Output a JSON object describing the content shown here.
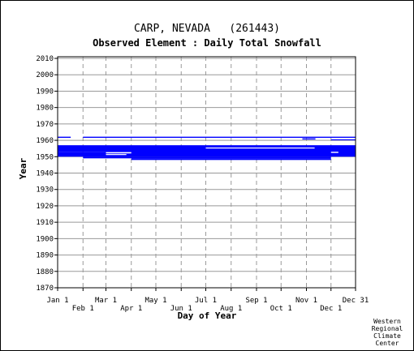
{
  "chart_data": {
    "type": "bar",
    "title": "CARP, NEVADA   (261443)",
    "subtitle": "Observed Element : Daily Total Snowfall",
    "xlabel": "Day of Year",
    "ylabel": "Year",
    "xlim": [
      1,
      365
    ],
    "ylim": [
      1870,
      2011
    ],
    "x_ticks_upper": [
      {
        "label": "Jan 1",
        "day": 1
      },
      {
        "label": "Mar 1",
        "day": 60
      },
      {
        "label": "May 1",
        "day": 121
      },
      {
        "label": "Jul 1",
        "day": 182
      },
      {
        "label": "Sep 1",
        "day": 244
      },
      {
        "label": "Nov 1",
        "day": 305
      },
      {
        "label": "Dec 31",
        "day": 365
      }
    ],
    "x_ticks_lower": [
      {
        "label": "Feb 1",
        "day": 32
      },
      {
        "label": "Apr 1",
        "day": 91
      },
      {
        "label": "Jun 1",
        "day": 152
      },
      {
        "label": "Aug 1",
        "day": 213
      },
      {
        "label": "Oct 1",
        "day": 274
      },
      {
        "label": "Dec 1",
        "day": 335
      }
    ],
    "y_ticks": [
      1870,
      1880,
      1890,
      1900,
      1910,
      1920,
      1930,
      1940,
      1950,
      1960,
      1970,
      1980,
      1990,
      2000,
      2010
    ],
    "grid": true,
    "bar_color": "#0000ff",
    "series": [
      {
        "values": [
          {
            "y0": 1961.5,
            "y1": 1962.2,
            "d0": 1,
            "d1": 17
          },
          {
            "y0": 1961.5,
            "y1": 1962.2,
            "d0": 32,
            "d1": 365
          },
          {
            "y0": 1960.5,
            "y1": 1961.2,
            "d0": 300,
            "d1": 316
          },
          {
            "y0": 1960.0,
            "y1": 1960.6,
            "d0": 335,
            "d1": 365
          },
          {
            "y0": 1953.0,
            "y1": 1957.0,
            "d0": 1,
            "d1": 60
          },
          {
            "y0": 1952.0,
            "y1": 1957.0,
            "d0": 60,
            "d1": 365
          },
          {
            "y0": 1950.0,
            "y1": 1953.0,
            "d0": 1,
            "d1": 365
          },
          {
            "y0": 1949.0,
            "y1": 1950.0,
            "d0": 32,
            "d1": 335
          },
          {
            "y0": 1948.0,
            "y1": 1949.0,
            "d0": 91,
            "d1": 335
          },
          {
            "y0": 1950.5,
            "y1": 1951.3,
            "d0": 1,
            "d1": 6
          },
          {
            "y0": 1953.0,
            "y1": 1954.0,
            "d0": 335,
            "d1": 365
          }
        ]
      },
      {
        "values": [
          {
            "y0": 1952.0,
            "y1": 1952.8,
            "d0": 60,
            "d1": 91
          },
          {
            "y0": 1955.0,
            "y1": 1955.6,
            "d0": 182,
            "d1": 315
          },
          {
            "y0": 1951.0,
            "y1": 1951.6,
            "d0": 60,
            "d1": 85
          },
          {
            "y0": 1952.3,
            "y1": 1953.0,
            "d0": 335,
            "d1": 344
          }
        ]
      }
    ]
  },
  "credit": [
    "Western",
    "Regional",
    "Climate",
    "Center"
  ]
}
